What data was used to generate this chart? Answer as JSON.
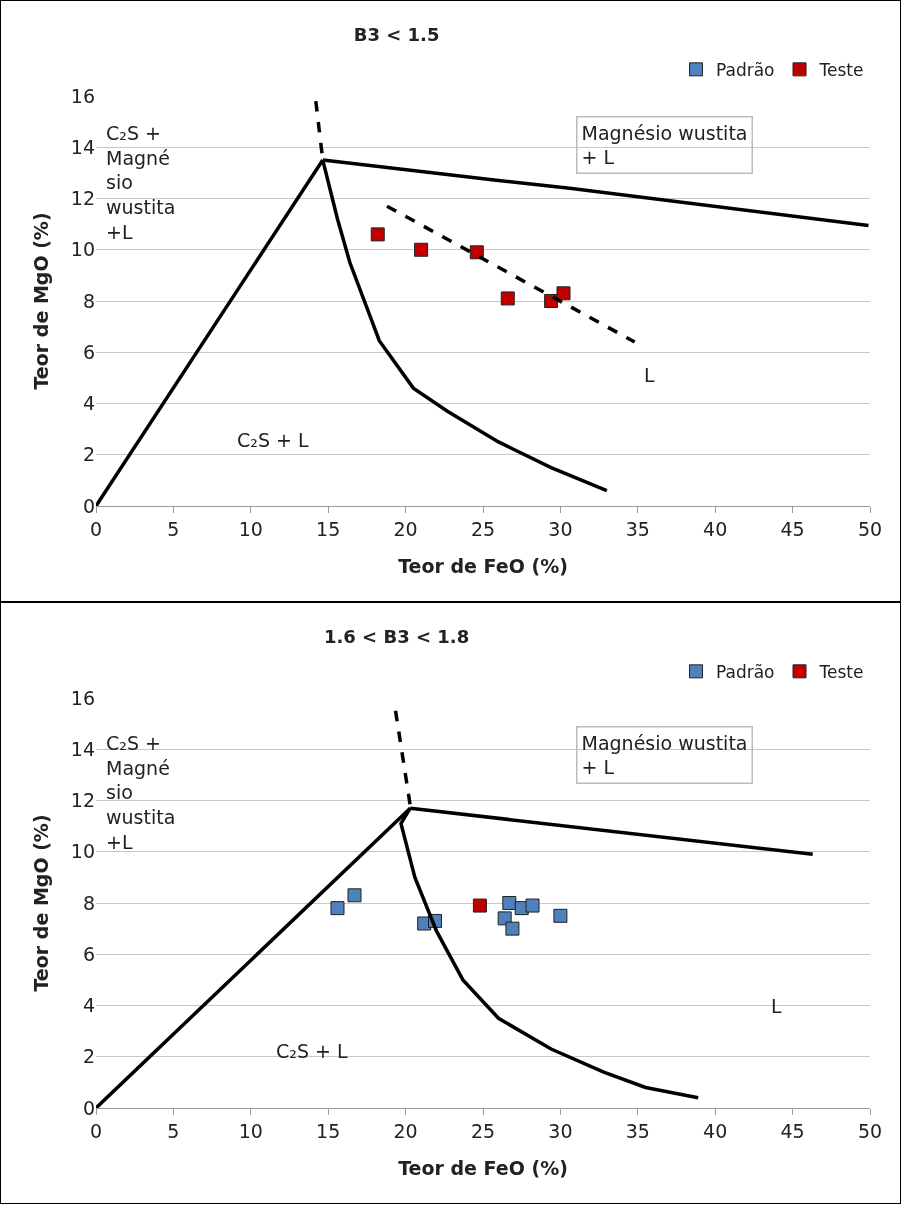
{
  "chart_data": [
    {
      "type": "scatter",
      "title": "B3 < 1.5",
      "xlabel": "Teor de FeO (%)",
      "ylabel": "Teor de MgO (%)",
      "xlim": [
        0,
        50
      ],
      "xticks": [
        0,
        5,
        10,
        15,
        20,
        25,
        30,
        35,
        40,
        45,
        50
      ],
      "ylim": [
        0,
        16
      ],
      "yticks": [
        0,
        2,
        4,
        6,
        8,
        10,
        12,
        14,
        16
      ],
      "grid": "y",
      "legend": "top right",
      "marker": "square",
      "series": [
        {
          "name": "Padrão",
          "color": "#4f81bd"
        },
        {
          "name": "Teste",
          "color": "#c00000",
          "x": [
            18.2,
            21.0,
            24.6,
            26.6,
            29.4,
            30.2
          ],
          "values": [
            10.6,
            10.0,
            9.9,
            8.1,
            8.0,
            8.3
          ]
        },
        {
          "type": "line",
          "marker": "none",
          "color": "#000000",
          "line_style": "solid",
          "x": [
            0,
            14.65
          ],
          "values": [
            0,
            13.5
          ]
        },
        {
          "type": "line",
          "marker": "none",
          "color": "#000000",
          "line_style": "solid",
          "x": [
            14.65,
            26.0,
            30.6,
            49.9
          ],
          "values": [
            13.5,
            12.7,
            12.4,
            10.95
          ]
        },
        {
          "type": "line",
          "marker": "none",
          "color": "#000000",
          "line_style": "solid",
          "x": [
            14.65,
            15.6,
            16.4,
            18.3,
            20.5,
            22.7,
            26.0,
            29.4,
            33.0
          ],
          "values": [
            13.5,
            11.2,
            9.5,
            6.45,
            4.6,
            3.7,
            2.5,
            1.5,
            0.6
          ]
        },
        {
          "type": "line",
          "marker": "none",
          "color": "#000000",
          "line_style": "dashed",
          "x": [
            14.2,
            14.65
          ],
          "values": [
            15.8,
            13.5
          ]
        },
        {
          "type": "line",
          "marker": "none",
          "color": "#000000",
          "line_style": "dashed",
          "x": [
            18.8,
            34.8
          ],
          "values": [
            11.7,
            6.4
          ]
        }
      ],
      "annotations": [
        "C₂S +\nMagné\nsio\nwustita\n+L",
        "Magnésio wustita\n+ L",
        "C₂S + L",
        "L"
      ]
    },
    {
      "type": "scatter",
      "title": "1.6 < B3 < 1.8",
      "xlabel": "Teor de FeO (%)",
      "ylabel": "Teor de MgO (%)",
      "xlim": [
        0,
        50
      ],
      "xticks": [
        0,
        5,
        10,
        15,
        20,
        25,
        30,
        35,
        40,
        45,
        50
      ],
      "ylim": [
        0,
        16
      ],
      "yticks": [
        0,
        2,
        4,
        6,
        8,
        10,
        12,
        14,
        16
      ],
      "grid": "y",
      "legend": "top right",
      "marker": "square",
      "series": [
        {
          "name": "Padrão",
          "color": "#4f81bd",
          "x": [
            15.6,
            16.7,
            21.2,
            21.9,
            26.7,
            26.4,
            26.9,
            27.5,
            28.2,
            30.0
          ],
          "values": [
            7.8,
            8.3,
            7.2,
            7.3,
            8.0,
            7.4,
            7.0,
            7.8,
            7.9,
            7.5
          ]
        },
        {
          "name": "Teste",
          "color": "#c00000",
          "x": [
            24.8
          ],
          "values": [
            7.9
          ]
        },
        {
          "type": "line",
          "marker": "none",
          "color": "#000000",
          "line_style": "solid",
          "x": [
            0,
            20.3
          ],
          "values": [
            0,
            11.7
          ]
        },
        {
          "type": "line",
          "marker": "none",
          "color": "#000000",
          "line_style": "solid",
          "x": [
            20.3,
            46.3
          ],
          "values": [
            11.7,
            9.9
          ]
        },
        {
          "type": "line",
          "marker": "none",
          "color": "#000000",
          "line_style": "solid",
          "x": [
            20.3,
            19.7,
            20.6,
            22.0,
            23.7,
            26.0,
            29.4,
            32.8,
            35.5,
            38.9
          ],
          "values": [
            11.7,
            11.1,
            9.0,
            6.9,
            5.0,
            3.5,
            2.3,
            1.4,
            0.8,
            0.4
          ]
        },
        {
          "type": "line",
          "marker": "none",
          "color": "#000000",
          "line_style": "dashed",
          "x": [
            19.35,
            20.3
          ],
          "values": [
            15.5,
            11.8
          ]
        }
      ],
      "annotations": [
        "C₂S +\nMagné\nsio\nwustita\n+L",
        "Magnésio wustita\n+ L",
        "C₂S + L",
        "L"
      ]
    }
  ]
}
